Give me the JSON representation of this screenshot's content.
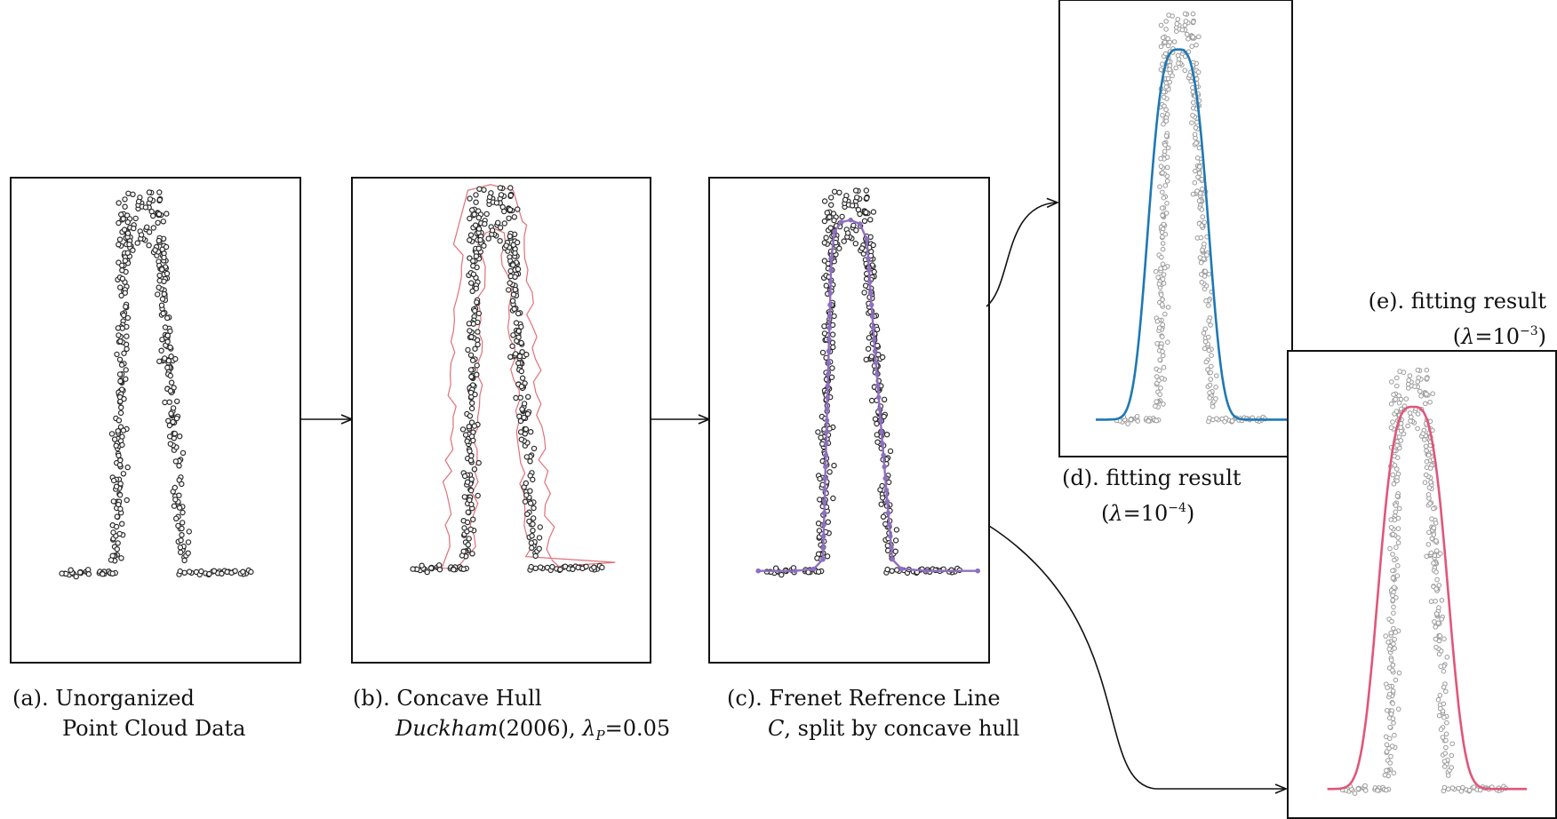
{
  "panels": [
    {
      "id": "a",
      "caption": [
        "(a). Unorganized",
        "Point Cloud Data"
      ]
    },
    {
      "id": "b",
      "caption": [
        "(b). Concave Hull"
      ],
      "caption_line2": {
        "author": "Duckham",
        "year": "(2006), ",
        "lambda": "λ",
        "lambda_sub": "P",
        "value": "=0.05"
      }
    },
    {
      "id": "c",
      "caption": [
        "(c). Frenet Refrence Line"
      ],
      "caption_line2": {
        "symbol": "C",
        "rest": ", split by concave hull"
      }
    },
    {
      "id": "d",
      "caption": [
        "(d). fitting result"
      ],
      "caption_line2": {
        "open": "(",
        "lambda": "λ",
        "eq": "=10",
        "exp": "−4",
        "close": ")"
      }
    },
    {
      "id": "e",
      "caption": [
        "(e). fitting result"
      ],
      "caption_line2": {
        "open": "(",
        "lambda": "λ",
        "eq": "=10",
        "exp": "−3",
        "close": ")"
      }
    }
  ],
  "colors": {
    "points": "#2b2b2b",
    "points_faded": "#9a9a9a",
    "hull": "#e0707a",
    "frenet": "#8f6fc0",
    "fit_d": "#1f78b4",
    "fit_e": "#e0567a",
    "frame": "#111111"
  }
}
